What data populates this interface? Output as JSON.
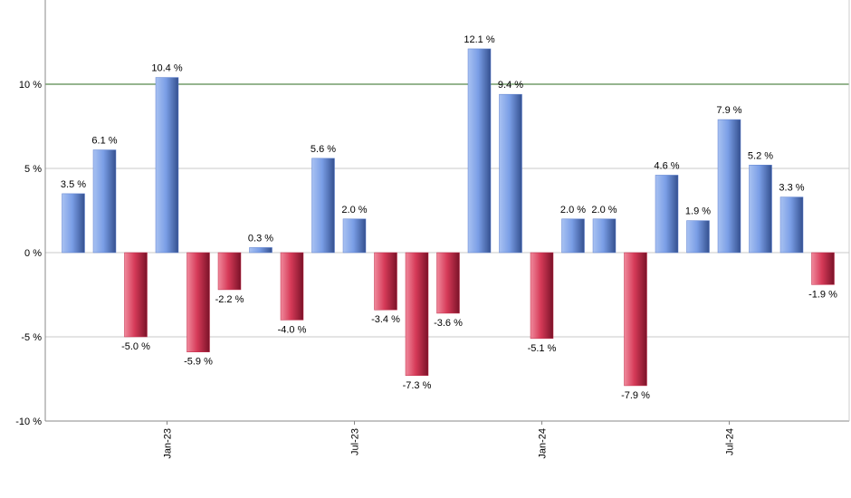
{
  "chart_data": {
    "type": "bar",
    "categories": [
      null,
      null,
      null,
      "Jan-23",
      null,
      null,
      null,
      null,
      null,
      "Jul-23",
      null,
      null,
      null,
      null,
      null,
      "Jan-24",
      null,
      null,
      null,
      null,
      null,
      "Jul-24",
      null,
      null,
      null
    ],
    "values": [
      3.5,
      6.1,
      -5.0,
      10.4,
      -5.9,
      -2.2,
      0.3,
      -4.0,
      5.6,
      2.0,
      -3.4,
      -7.3,
      -3.6,
      12.1,
      9.4,
      -5.1,
      2.0,
      2.0,
      -7.9,
      4.6,
      1.9,
      7.9,
      5.2,
      3.3,
      -1.9
    ],
    "value_labels": [
      "3.5 %",
      "6.1 %",
      "-5.0 %",
      "10.4 %",
      "-5.9 %",
      "-2.2 %",
      "0.3 %",
      "-4.0 %",
      "5.6 %",
      "2.0 %",
      "-3.4 %",
      "-7.3 %",
      "-3.6 %",
      "12.1 %",
      "9.4 %",
      "-5.1 %",
      "2.0 %",
      "2.0 %",
      "-7.9 %",
      "4.6 %",
      "1.9 %",
      "7.9 %",
      "5.2 %",
      "3.3 %",
      "-1.9 %"
    ],
    "positive_color": "#5b7fcf",
    "negative_color": "#c22a48",
    "ylim": [
      -10,
      15
    ],
    "yticks": [
      {
        "value": -10,
        "label": "-10 %"
      },
      {
        "value": -5,
        "label": "-5 %"
      },
      {
        "value": 0,
        "label": "0 %"
      },
      {
        "value": 5,
        "label": "5 %"
      },
      {
        "value": 10,
        "label": "10 %"
      }
    ],
    "grid": true,
    "reference_line": {
      "value": 10,
      "color": "#2e6b1f"
    }
  }
}
